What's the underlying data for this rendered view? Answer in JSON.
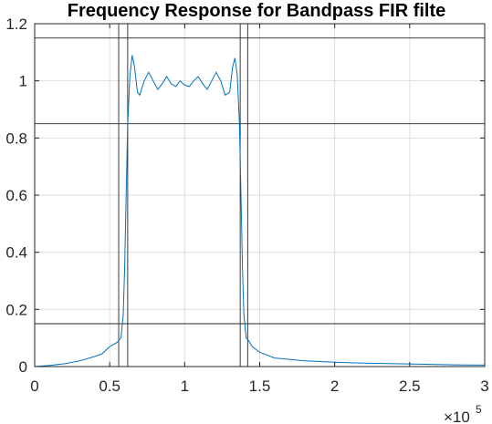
{
  "chart_data": {
    "type": "line",
    "title": "Frequency Response for Bandpass FIR filte",
    "xlabel": "",
    "ylabel": "",
    "xlim": [
      0,
      300000
    ],
    "ylim": [
      0,
      1.2
    ],
    "x_tick_values": [
      0,
      50000,
      100000,
      150000,
      200000,
      250000,
      300000
    ],
    "x_tick_labels": [
      "0",
      "0.5",
      "1",
      "1.5",
      "2",
      "2.5",
      "3"
    ],
    "x_exponent_label": "×10",
    "x_exponent_power": "5",
    "y_tick_values": [
      0,
      0.2,
      0.4,
      0.6,
      0.8,
      1.0,
      1.2
    ],
    "y_tick_labels": [
      "0",
      "0.2",
      "0.4",
      "0.6",
      "0.8",
      "1",
      "1.2"
    ],
    "grid": true,
    "series": [
      {
        "color": "#0072bd",
        "points": [
          [
            0,
            0.0
          ],
          [
            10000,
            0.004
          ],
          [
            20000,
            0.01
          ],
          [
            30000,
            0.02
          ],
          [
            40000,
            0.035
          ],
          [
            45000,
            0.045
          ],
          [
            50000,
            0.07
          ],
          [
            55000,
            0.085
          ],
          [
            57500,
            0.1
          ],
          [
            59000,
            0.18
          ],
          [
            60000,
            0.35
          ],
          [
            61000,
            0.6
          ],
          [
            62000,
            0.85
          ],
          [
            63500,
            1.02
          ],
          [
            65000,
            1.09
          ],
          [
            66500,
            1.05
          ],
          [
            68500,
            0.96
          ],
          [
            70000,
            0.95
          ],
          [
            73000,
            1.0
          ],
          [
            76000,
            1.03
          ],
          [
            79000,
            1.0
          ],
          [
            82000,
            0.97
          ],
          [
            85000,
            0.99
          ],
          [
            88000,
            1.015
          ],
          [
            91000,
            0.99
          ],
          [
            94000,
            0.98
          ],
          [
            97000,
            1.0
          ],
          [
            100000,
            0.985
          ],
          [
            103000,
            0.98
          ],
          [
            106000,
            1.0
          ],
          [
            109000,
            1.015
          ],
          [
            112000,
            0.99
          ],
          [
            115000,
            0.97
          ],
          [
            118000,
            1.0
          ],
          [
            121000,
            1.03
          ],
          [
            124000,
            1.0
          ],
          [
            127000,
            0.95
          ],
          [
            130000,
            0.96
          ],
          [
            132000,
            1.05
          ],
          [
            133500,
            1.08
          ],
          [
            135000,
            1.02
          ],
          [
            136500,
            0.85
          ],
          [
            137500,
            0.6
          ],
          [
            138500,
            0.35
          ],
          [
            139500,
            0.18
          ],
          [
            141000,
            0.1
          ],
          [
            142000,
            0.095
          ],
          [
            145000,
            0.07
          ],
          [
            150000,
            0.05
          ],
          [
            160000,
            0.03
          ],
          [
            180000,
            0.02
          ],
          [
            200000,
            0.015
          ],
          [
            220000,
            0.012
          ],
          [
            240000,
            0.01
          ],
          [
            260000,
            0.008
          ],
          [
            280000,
            0.006
          ],
          [
            300000,
            0.005
          ]
        ]
      }
    ],
    "horizontal_reference_lines": [
      0.15,
      0.85,
      1.15
    ],
    "vertical_reference_lines": [
      56000,
      62000,
      137000,
      142000
    ],
    "reference_line_color": "#262626"
  }
}
